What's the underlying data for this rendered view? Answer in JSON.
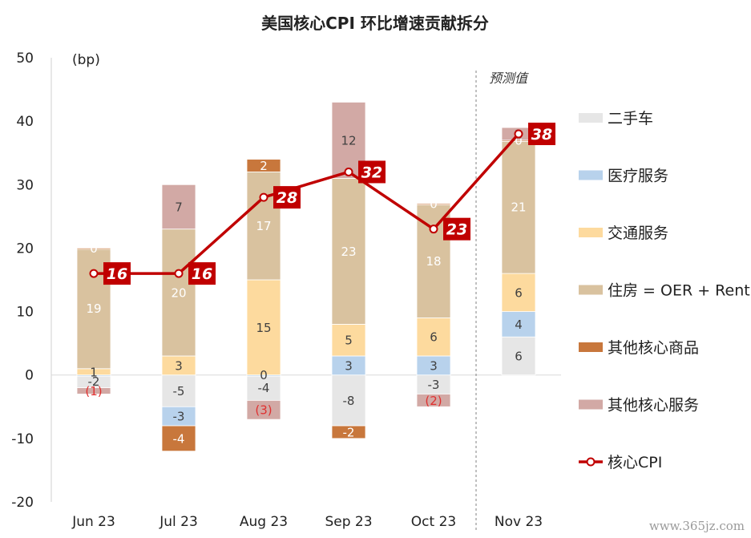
{
  "chart_data": {
    "type": "bar",
    "stacked": true,
    "title": "美国核心CPI 环比增速贡献拆分",
    "unit_label": "(bp)",
    "forecast_label": "预测值",
    "categories": [
      "Jun 23",
      "Jul 23",
      "Aug 23",
      "Sep 23",
      "Oct 23",
      "Nov 23"
    ],
    "ylim": [
      -20,
      50
    ],
    "yticks": [
      -20,
      -10,
      0,
      10,
      20,
      30,
      40,
      50
    ],
    "grid": false,
    "legend_position": "right",
    "series": [
      {
        "name": "二手车",
        "color": "#E6E6E6",
        "values": [
          -2,
          -5,
          -4,
          -8,
          -3,
          6
        ],
        "labels": [
          "-2",
          "-5",
          "-4",
          "-8",
          "-3",
          "6"
        ],
        "label_color": "#404040"
      },
      {
        "name": "医疗服务",
        "color": "#B8D2EC",
        "values": [
          0,
          -3,
          0,
          3,
          3,
          4
        ],
        "labels": [
          "",
          "-3",
          "0",
          "3",
          "3",
          "4"
        ],
        "label_color": "#404040"
      },
      {
        "name": "交通服务",
        "color": "#FDDA9E",
        "values": [
          1,
          3,
          15,
          5,
          6,
          6
        ],
        "labels": [
          "1",
          "3",
          "15",
          "5",
          "6",
          "6"
        ],
        "label_color": "#404040"
      },
      {
        "name": "住房 = OER + Rent",
        "color": "#D9C29F",
        "values": [
          19,
          20,
          17,
          23,
          18,
          21
        ],
        "labels": [
          "19",
          "20",
          "17",
          "23",
          "18",
          "21"
        ],
        "label_color": "#ffffff"
      },
      {
        "name": "其他核心商品",
        "color": "#C8773C",
        "values": [
          0,
          -4,
          2,
          -2,
          0,
          0
        ],
        "labels": [
          "0",
          "-4",
          "2",
          "-2",
          "0",
          "0"
        ],
        "label_color": "#ffffff"
      },
      {
        "name": "其他核心服务",
        "color": "#D2A9A5",
        "values": [
          -1,
          7,
          -3,
          12,
          -2,
          2
        ],
        "labels": [
          "(1)",
          "7",
          "(3)",
          "12",
          "(2)",
          "2"
        ],
        "label_color": "#404040",
        "neg_label_color": "#E03030"
      }
    ],
    "line": {
      "name": "核心CPI",
      "color": "#C00000",
      "values": [
        16,
        16,
        28,
        32,
        23,
        38
      ],
      "labels": [
        "16",
        "16",
        "28",
        "32",
        "23",
        "38"
      ]
    }
  },
  "watermark": "www.365jz.com"
}
